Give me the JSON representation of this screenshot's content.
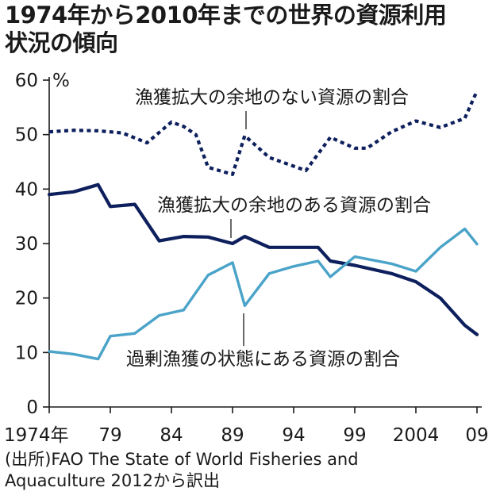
{
  "title_lines": [
    "1974年から2010年までの世界の資源利用",
    "状況の傾向"
  ],
  "source_lines": [
    "(出所)FAO The State of World Fisheries and",
    "Aquaculture 2012から訳出"
  ],
  "colors": {
    "dotted": "#0d1f5c",
    "solid_dark": "#0d1f5c",
    "light": "#4aa3c8",
    "axis": "#1a1a1a"
  },
  "chart_data": {
    "type": "line",
    "title": "1974年から2010年までの世界の資源利用状況の傾向",
    "ylabel_unit": "%",
    "ylim": [
      0,
      60
    ],
    "y_ticks": [
      0,
      10,
      20,
      30,
      40,
      50,
      60
    ],
    "y_tick_labels": [
      "0",
      "10",
      "20",
      "30",
      "40",
      "50",
      "60"
    ],
    "x_ticks": [
      1974,
      1979,
      1984,
      1989,
      1994,
      1999,
      2004,
      2009
    ],
    "x_tick_labels": [
      "1974年",
      "79",
      "84",
      "89",
      "94",
      "99",
      "2004",
      "09"
    ],
    "xlim": [
      1974,
      2009
    ],
    "series": [
      {
        "name": "漁獲拡大の余地のない資源の割合",
        "style": "dotted",
        "x": [
          1974,
          1976,
          1978,
          1980,
          1982,
          1984,
          1985,
          1986,
          1987,
          1989,
          1990,
          1992,
          1994,
          1995,
          1997,
          1999,
          2000,
          2002,
          2004,
          2006,
          2008,
          2009
        ],
        "y": [
          50.5,
          50.8,
          50.7,
          50.3,
          48.5,
          52.3,
          51.5,
          50,
          44,
          42.7,
          49.8,
          45.8,
          44.2,
          43.4,
          49.5,
          47.5,
          47.5,
          50.5,
          52.5,
          51.3,
          53,
          58
        ]
      },
      {
        "name": "漁獲拡大の余地のある資源の割合",
        "style": "solid-dark",
        "x": [
          1974,
          1976,
          1978,
          1979,
          1981,
          1983,
          1985,
          1987,
          1989,
          1990,
          1992,
          1994,
          1996,
          1997,
          1999,
          2002,
          2004,
          2006,
          2008,
          2009
        ],
        "y": [
          39,
          39.5,
          40.8,
          36.8,
          37.2,
          30.5,
          31.3,
          31.2,
          30,
          31.3,
          29.3,
          29.3,
          29.3,
          26.8,
          26,
          24.5,
          23,
          20,
          15,
          13.3
        ]
      },
      {
        "name": "過剰漁獲の状態にある資源の割合",
        "style": "solid-light",
        "x": [
          1974,
          1976,
          1978,
          1979,
          1981,
          1983,
          1985,
          1987,
          1989,
          1990,
          1992,
          1994,
          1996,
          1997,
          1999,
          2002,
          2004,
          2006,
          2008,
          2009
        ],
        "y": [
          10.2,
          9.7,
          8.8,
          13,
          13.5,
          16.8,
          17.8,
          24.2,
          26.5,
          18.6,
          24.5,
          25.8,
          26.8,
          23.9,
          27.6,
          26.3,
          24.9,
          29.3,
          32.7,
          29.9
        ]
      }
    ],
    "annotations": [
      {
        "text": "漁獲拡大の余地のない資源の割合",
        "series": 0
      },
      {
        "text": "漁獲拡大の余地のある資源の割合",
        "series": 1
      },
      {
        "text": "過剰漁獲の状態にある資源の割合",
        "series": 2
      }
    ]
  }
}
